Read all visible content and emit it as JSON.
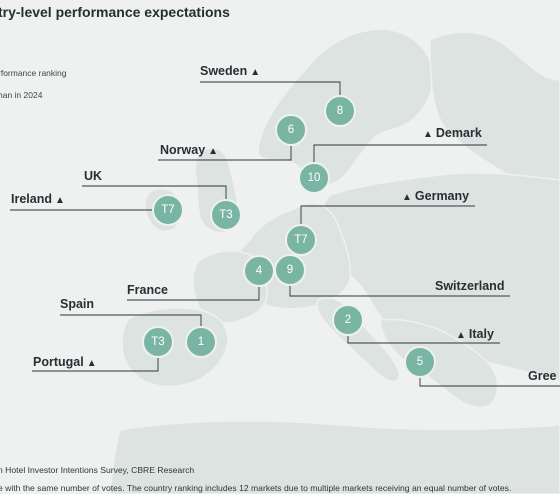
{
  "title": "try-level performance expectations",
  "legend": {
    "line1": "rformance ranking",
    "line2": "han in 2024"
  },
  "triangle_symbol": "▲",
  "countries": [
    {
      "name": "Sweden",
      "triangle": "after",
      "rank": "8"
    },
    {
      "name": "Norway",
      "triangle": "after",
      "rank": "6"
    },
    {
      "name": "Demark",
      "triangle": "before",
      "rank": "10"
    },
    {
      "name": "UK",
      "triangle": "none",
      "rank": "T3"
    },
    {
      "name": "Ireland",
      "triangle": "after",
      "rank": "T7"
    },
    {
      "name": "Germany",
      "triangle": "before",
      "rank": "T7"
    },
    {
      "name": "France",
      "triangle": "none",
      "rank": "4"
    },
    {
      "name": "Switzerland",
      "triangle": "none",
      "rank": "9"
    },
    {
      "name": "Spain",
      "triangle": "none",
      "rank": "1"
    },
    {
      "name": "Italy",
      "triangle": "before",
      "rank": "2"
    },
    {
      "name": "Portugal",
      "triangle": "after",
      "rank": "T3"
    },
    {
      "name": "Gree",
      "triangle": "none",
      "rank": "5"
    }
  ],
  "footer": {
    "source": "n Hotel Investor Intentions Survey, CBRE Research",
    "note": "e with the same number of votes. The country ranking includes 12 markets due to multiple markets receiving an equal number of votes."
  },
  "colors": {
    "land": "#dde3e1",
    "sea": "#eef1f0",
    "badge": "#7ab5a3",
    "line": "#2b3436"
  }
}
